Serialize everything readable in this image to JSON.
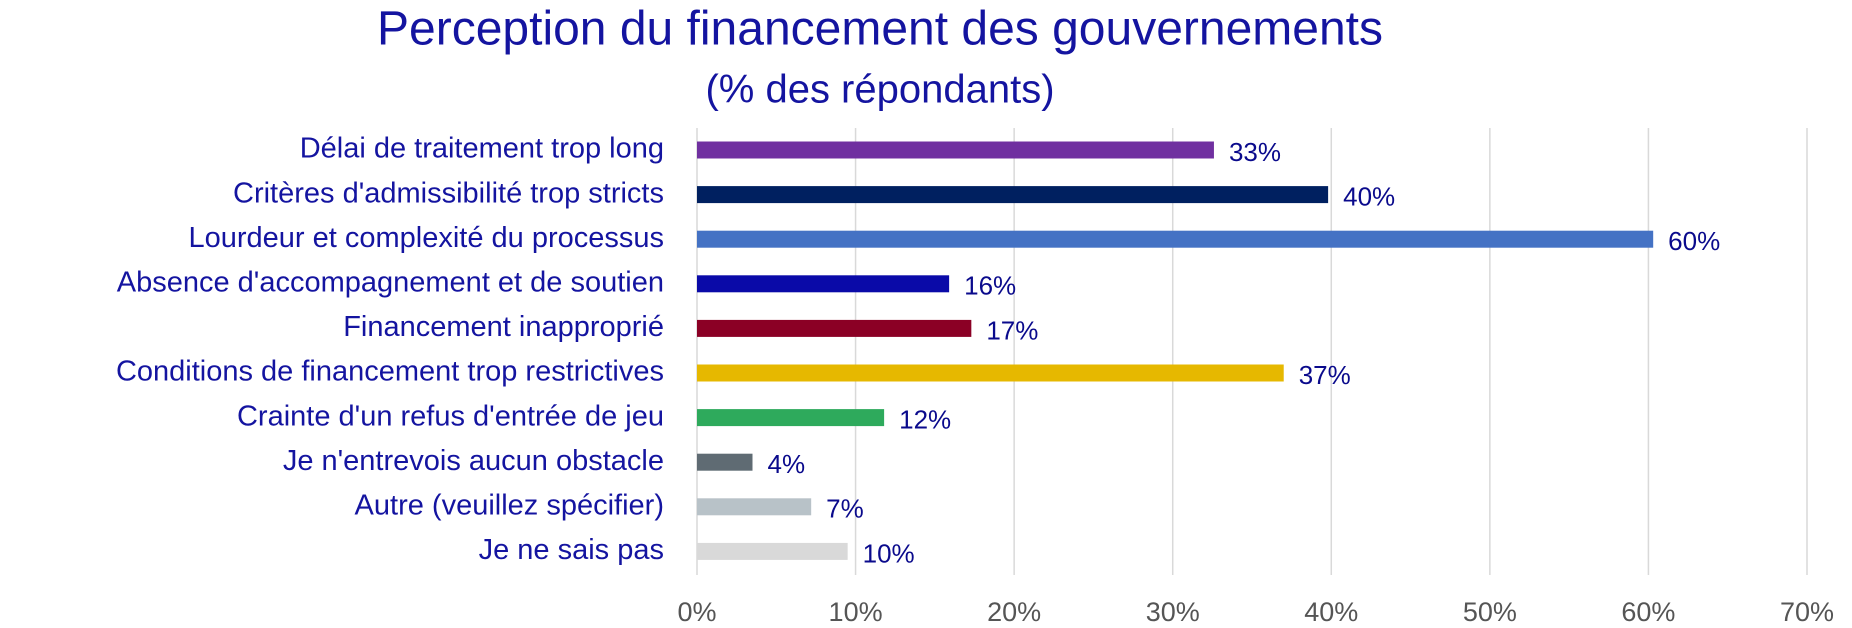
{
  "chart_data": {
    "type": "bar",
    "orientation": "horizontal",
    "title": "Perception du financement des gouvernements",
    "subtitle": "(% des répondants)",
    "categories": [
      "Délai de traitement trop long",
      "Critères d'admissibilité trop stricts",
      "Lourdeur et complexité du processus",
      "Absence d'accompagnement et de soutien",
      "Financement inapproprié",
      "Conditions de financement trop restrictives",
      "Crainte d'un refus d'entrée de jeu",
      "Je n'entrevois aucun obstacle",
      "Autre (veuillez spécifier) ",
      "Je ne sais pas"
    ],
    "values": [
      32.6,
      39.8,
      60.3,
      15.9,
      17.3,
      37.0,
      11.8,
      3.5,
      7.2,
      9.5
    ],
    "value_labels": [
      "33%",
      "40%",
      "60%",
      "16%",
      "17%",
      "37%",
      "12%",
      "4%",
      "7%",
      "10%"
    ],
    "colors": [
      "#7030a0",
      "#002060",
      "#4472c4",
      "#0a0aa8",
      "#8b0025",
      "#e6b800",
      "#2eaa5c",
      "#5f6b73",
      "#b8c2c8",
      "#d9d9d9"
    ],
    "xlim": [
      0,
      70
    ],
    "xticks": [
      {
        "value": 0,
        "label": "0%"
      },
      {
        "value": 10,
        "label": "10%"
      },
      {
        "value": 20,
        "label": "20%"
      },
      {
        "value": 30,
        "label": "30%"
      },
      {
        "value": 40,
        "label": "40%"
      },
      {
        "value": 50,
        "label": "50%"
      },
      {
        "value": 60,
        "label": "60%"
      },
      {
        "value": 70,
        "label": "70%"
      }
    ],
    "grid": true
  }
}
